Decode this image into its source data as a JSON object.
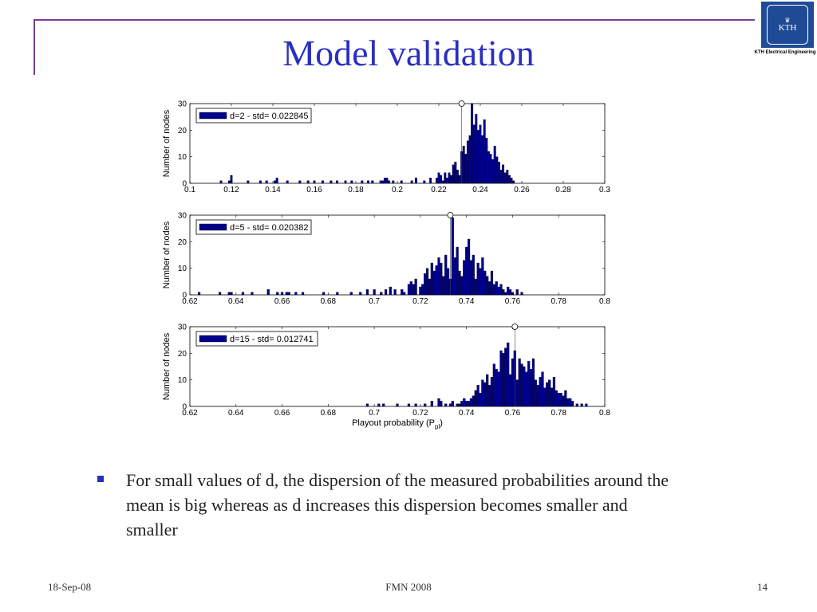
{
  "slide": {
    "title": "Model validation",
    "bullet": "For small values of d, the dispersion of the measured probabilities around the mean is big whereas as d increases this dispersion becomes smaller and smaller",
    "footer_date": "18-Sep-08",
    "footer_center": "FMN 2008",
    "page_number": "14",
    "logo_text": "KTH",
    "logo_caption": "KTH Electrical Engineering"
  },
  "colors": {
    "accent": "#2a2fc0",
    "frame": "#7a3f8f",
    "bar": "#00008b",
    "logo": "#1f4a96"
  },
  "chart_data": [
    {
      "type": "bar",
      "legend": "d=2 - std= 0.022845",
      "ylabel": "Number of nodes",
      "xlabel": "",
      "xlim": [
        0.1,
        0.3
      ],
      "ylim": [
        0,
        30
      ],
      "xticks": [
        0.1,
        0.12,
        0.14,
        0.16,
        0.18,
        0.2,
        0.22,
        0.24,
        0.26,
        0.28,
        0.3
      ],
      "yticks": [
        0,
        10,
        20,
        30
      ],
      "mean_marker": 0.231,
      "bin_width": 0.001,
      "x": [
        0.115,
        0.119,
        0.12,
        0.128,
        0.134,
        0.137,
        0.141,
        0.142,
        0.147,
        0.153,
        0.157,
        0.16,
        0.164,
        0.168,
        0.171,
        0.175,
        0.178,
        0.183,
        0.186,
        0.188,
        0.192,
        0.193,
        0.194,
        0.195,
        0.196,
        0.198,
        0.202,
        0.207,
        0.209,
        0.213,
        0.216,
        0.219,
        0.22,
        0.221,
        0.222,
        0.223,
        0.224,
        0.225,
        0.226,
        0.227,
        0.228,
        0.229,
        0.23,
        0.231,
        0.232,
        0.233,
        0.234,
        0.235,
        0.236,
        0.237,
        0.238,
        0.239,
        0.24,
        0.241,
        0.242,
        0.243,
        0.244,
        0.245,
        0.246,
        0.247,
        0.248,
        0.249,
        0.25,
        0.251,
        0.252,
        0.253,
        0.254,
        0.255,
        0.256
      ],
      "values": [
        1,
        1,
        3,
        1,
        1,
        1,
        1,
        2,
        1,
        1,
        1,
        1,
        1,
        1,
        1,
        1,
        1,
        1,
        1,
        1,
        1,
        1,
        2,
        2,
        1,
        1,
        1,
        1,
        2,
        1,
        2,
        2,
        4,
        3,
        1,
        4,
        2,
        4,
        3,
        7,
        8,
        5,
        3,
        12,
        14,
        11,
        16,
        18,
        30,
        22,
        26,
        20,
        22,
        18,
        24,
        17,
        12,
        11,
        9,
        14,
        10,
        8,
        5,
        7,
        4,
        5,
        3,
        2,
        1
      ]
    },
    {
      "type": "bar",
      "legend": "d=5 - std= 0.020382",
      "ylabel": "Number of nodes",
      "xlabel": "",
      "xlim": [
        0.62,
        0.8
      ],
      "ylim": [
        0,
        30
      ],
      "xticks": [
        0.62,
        0.64,
        0.66,
        0.68,
        0.7,
        0.72,
        0.74,
        0.76,
        0.78,
        0.8
      ],
      "yticks": [
        0,
        10,
        20,
        30
      ],
      "mean_marker": 0.733,
      "bin_width": 0.001,
      "x": [
        0.624,
        0.633,
        0.637,
        0.638,
        0.643,
        0.647,
        0.654,
        0.658,
        0.66,
        0.662,
        0.663,
        0.666,
        0.669,
        0.678,
        0.684,
        0.69,
        0.694,
        0.697,
        0.7,
        0.703,
        0.705,
        0.707,
        0.709,
        0.712,
        0.713,
        0.715,
        0.716,
        0.717,
        0.718,
        0.72,
        0.721,
        0.722,
        0.723,
        0.724,
        0.725,
        0.726,
        0.727,
        0.728,
        0.729,
        0.73,
        0.731,
        0.732,
        0.733,
        0.734,
        0.735,
        0.736,
        0.737,
        0.738,
        0.739,
        0.74,
        0.741,
        0.742,
        0.743,
        0.744,
        0.745,
        0.746,
        0.747,
        0.748,
        0.749,
        0.75,
        0.751,
        0.752,
        0.753,
        0.754,
        0.755,
        0.756,
        0.757,
        0.758,
        0.759,
        0.76,
        0.762,
        0.764
      ],
      "values": [
        1,
        1,
        1,
        1,
        1,
        1,
        2,
        1,
        1,
        1,
        1,
        1,
        1,
        1,
        1,
        1,
        1,
        2,
        2,
        1,
        2,
        3,
        2,
        2,
        1,
        4,
        5,
        4,
        6,
        3,
        4,
        8,
        10,
        6,
        12,
        9,
        11,
        14,
        12,
        7,
        15,
        10,
        6,
        29,
        14,
        18,
        9,
        7,
        13,
        18,
        21,
        13,
        15,
        6,
        12,
        10,
        14,
        9,
        7,
        5,
        9,
        4,
        5,
        3,
        4,
        2,
        1,
        3,
        2,
        1,
        2,
        1
      ]
    },
    {
      "type": "bar",
      "legend": "d=15 - std= 0.012741",
      "ylabel": "Number of nodes",
      "xlabel": "Playout probability (P_pl)",
      "xlim": [
        0.62,
        0.8
      ],
      "ylim": [
        0,
        30
      ],
      "xticks": [
        0.62,
        0.64,
        0.66,
        0.68,
        0.7,
        0.72,
        0.74,
        0.76,
        0.78,
        0.8
      ],
      "yticks": [
        0,
        10,
        20,
        30
      ],
      "mean_marker": 0.761,
      "bin_width": 0.001,
      "x": [
        0.697,
        0.702,
        0.704,
        0.71,
        0.715,
        0.718,
        0.722,
        0.725,
        0.728,
        0.729,
        0.731,
        0.733,
        0.734,
        0.736,
        0.737,
        0.738,
        0.739,
        0.74,
        0.741,
        0.742,
        0.743,
        0.744,
        0.745,
        0.746,
        0.747,
        0.748,
        0.749,
        0.75,
        0.751,
        0.752,
        0.753,
        0.754,
        0.755,
        0.756,
        0.757,
        0.758,
        0.759,
        0.76,
        0.761,
        0.762,
        0.763,
        0.764,
        0.765,
        0.766,
        0.767,
        0.768,
        0.769,
        0.77,
        0.771,
        0.772,
        0.773,
        0.774,
        0.775,
        0.776,
        0.777,
        0.778,
        0.779,
        0.78,
        0.781,
        0.782,
        0.783,
        0.784,
        0.785,
        0.786,
        0.788,
        0.79,
        0.792
      ],
      "values": [
        1,
        1,
        1,
        1,
        1,
        1,
        1,
        2,
        3,
        2,
        1,
        1,
        2,
        1,
        1,
        2,
        3,
        2,
        2,
        3,
        4,
        6,
        8,
        5,
        10,
        9,
        12,
        8,
        11,
        16,
        14,
        13,
        21,
        20,
        22,
        24,
        12,
        18,
        21,
        10,
        18,
        16,
        15,
        13,
        17,
        14,
        18,
        10,
        8,
        11,
        13,
        7,
        9,
        10,
        7,
        11,
        6,
        5,
        5,
        4,
        6,
        3,
        3,
        2,
        1,
        1,
        1
      ]
    }
  ]
}
